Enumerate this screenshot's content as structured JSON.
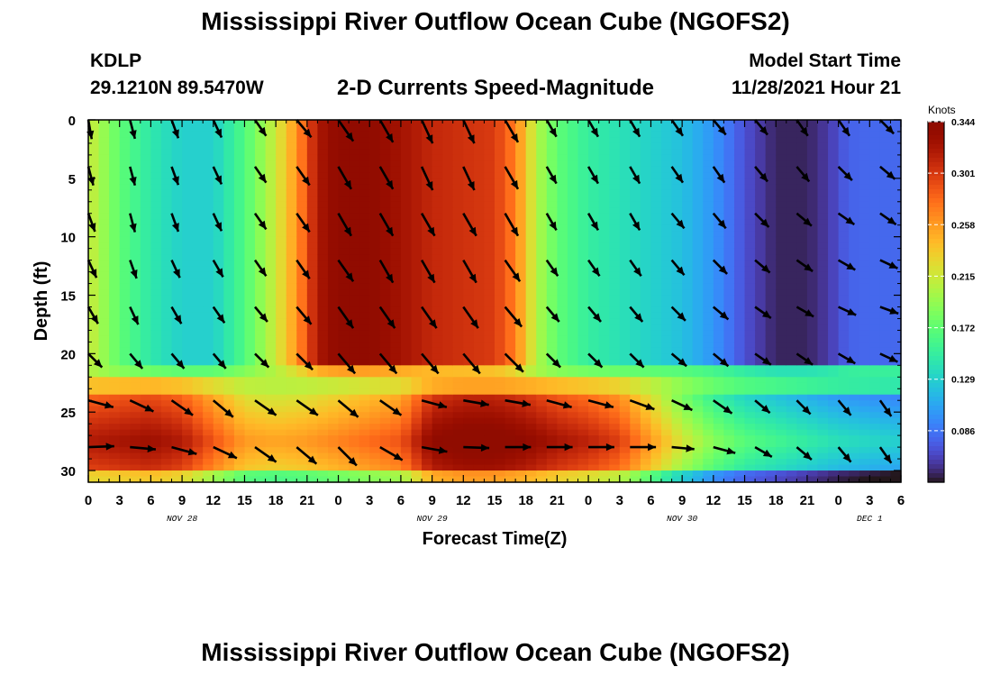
{
  "page": {
    "title_top": "Mississippi River Outflow Ocean Cube (NGOFS2)",
    "title_bottom": "Mississippi River Outflow Ocean Cube (NGOFS2)",
    "station_id": "KDLP",
    "station_coords": "29.1210N  89.5470W",
    "subtitle": "2-D Currents Speed-Magnitude",
    "model_start_label": "Model Start Time",
    "model_start_time": "11/28/2021 Hour 21"
  },
  "chart_data": {
    "type": "heatmap",
    "title": "2-D Currents Speed-Magnitude",
    "xlabel": "Forecast Time(Z)",
    "ylabel": "Depth (ft)",
    "x_tick_labels": [
      "0",
      "3",
      "6",
      "9",
      "12",
      "15",
      "18",
      "21",
      "0",
      "3",
      "6",
      "9",
      "12",
      "15",
      "18",
      "21",
      "0",
      "3",
      "6",
      "9",
      "12",
      "15",
      "18",
      "21",
      "0",
      "3",
      "6"
    ],
    "x_range_hours": [
      0,
      78
    ],
    "date_labels": [
      {
        "label": "NOV 28",
        "hour": 9
      },
      {
        "label": "NOV 29",
        "hour": 33
      },
      {
        "label": "NOV 30",
        "hour": 57
      },
      {
        "label": "DEC 1",
        "hour": 75
      }
    ],
    "y_tick_labels": [
      "0",
      "5",
      "10",
      "15",
      "20",
      "25",
      "30"
    ],
    "y_range": [
      0,
      31
    ],
    "y_inverted": true,
    "colorbar": {
      "unit_label": "Knots",
      "tick_labels": [
        "0.344",
        "0.301",
        "0.258",
        "0.215",
        "0.172",
        "0.129",
        "0.086"
      ],
      "min": 0.043,
      "max": 0.344,
      "colormap": "turbo"
    },
    "surface_layer_speed_by_hour": [
      {
        "hour": 0,
        "speed": 0.215
      },
      {
        "hour": 3,
        "speed": 0.172
      },
      {
        "hour": 6,
        "speed": 0.145
      },
      {
        "hour": 9,
        "speed": 0.129
      },
      {
        "hour": 12,
        "speed": 0.129
      },
      {
        "hour": 15,
        "speed": 0.165
      },
      {
        "hour": 18,
        "speed": 0.215
      },
      {
        "hour": 20,
        "speed": 0.26
      },
      {
        "hour": 22,
        "speed": 0.32
      },
      {
        "hour": 24,
        "speed": 0.34
      },
      {
        "hour": 27,
        "speed": 0.34
      },
      {
        "hour": 30,
        "speed": 0.325
      },
      {
        "hour": 33,
        "speed": 0.31
      },
      {
        "hour": 36,
        "speed": 0.305
      },
      {
        "hour": 39,
        "speed": 0.3
      },
      {
        "hour": 41,
        "speed": 0.27
      },
      {
        "hour": 43,
        "speed": 0.205
      },
      {
        "hour": 45,
        "speed": 0.172
      },
      {
        "hour": 48,
        "speed": 0.15
      },
      {
        "hour": 51,
        "speed": 0.14
      },
      {
        "hour": 54,
        "speed": 0.13
      },
      {
        "hour": 57,
        "speed": 0.12
      },
      {
        "hour": 60,
        "speed": 0.1
      },
      {
        "hour": 63,
        "speed": 0.07
      },
      {
        "hour": 66,
        "speed": 0.05
      },
      {
        "hour": 69,
        "speed": 0.05
      },
      {
        "hour": 71,
        "speed": 0.06
      },
      {
        "hour": 73,
        "speed": 0.078
      },
      {
        "hour": 75,
        "speed": 0.08
      },
      {
        "hour": 78,
        "speed": 0.08
      }
    ],
    "mixed_band": {
      "depth_from": 21.5,
      "depth_to": 23.5,
      "speed": 0.2
    },
    "lower_layer_speed_by_hour": [
      {
        "hour": 0,
        "speed": 0.28
      },
      {
        "hour": 6,
        "speed": 0.29
      },
      {
        "hour": 9,
        "speed": 0.28
      },
      {
        "hour": 12,
        "speed": 0.25
      },
      {
        "hour": 15,
        "speed": 0.22
      },
      {
        "hour": 18,
        "speed": 0.215
      },
      {
        "hour": 21,
        "speed": 0.22
      },
      {
        "hour": 24,
        "speed": 0.23
      },
      {
        "hour": 27,
        "speed": 0.24
      },
      {
        "hour": 30,
        "speed": 0.25
      },
      {
        "hour": 33,
        "speed": 0.3
      },
      {
        "hour": 36,
        "speed": 0.31
      },
      {
        "hour": 39,
        "speed": 0.31
      },
      {
        "hour": 42,
        "speed": 0.3
      },
      {
        "hour": 45,
        "speed": 0.285
      },
      {
        "hour": 48,
        "speed": 0.275
      },
      {
        "hour": 51,
        "speed": 0.26
      },
      {
        "hour": 54,
        "speed": 0.22
      },
      {
        "hour": 57,
        "speed": 0.18
      },
      {
        "hour": 60,
        "speed": 0.15
      },
      {
        "hour": 63,
        "speed": 0.13
      },
      {
        "hour": 66,
        "speed": 0.12
      },
      {
        "hour": 69,
        "speed": 0.11
      },
      {
        "hour": 72,
        "speed": 0.1
      },
      {
        "hour": 75,
        "speed": 0.095
      },
      {
        "hour": 78,
        "speed": 0.09
      }
    ],
    "vector_hours": [
      0,
      4,
      8,
      12,
      16,
      20,
      24,
      28,
      32,
      36,
      40,
      44,
      48,
      52,
      56,
      60,
      64,
      68,
      72,
      76
    ],
    "vector_depths_ft": [
      0,
      4,
      8,
      12,
      16,
      20,
      24,
      28
    ],
    "vector_direction_deg": [
      [
        170,
        165,
        160,
        155,
        145,
        140,
        145,
        150,
        155,
        155,
        150,
        150,
        150,
        150,
        145,
        140,
        140,
        145,
        145,
        135
      ],
      [
        165,
        165,
        160,
        155,
        145,
        145,
        150,
        150,
        155,
        155,
        150,
        150,
        150,
        150,
        145,
        145,
        140,
        140,
        135,
        130
      ],
      [
        160,
        165,
        160,
        155,
        145,
        145,
        150,
        150,
        150,
        150,
        150,
        150,
        150,
        150,
        140,
        140,
        135,
        130,
        125,
        125
      ],
      [
        155,
        160,
        155,
        150,
        145,
        145,
        145,
        150,
        150,
        150,
        145,
        145,
        145,
        145,
        140,
        135,
        130,
        125,
        120,
        115
      ],
      [
        150,
        155,
        150,
        145,
        140,
        140,
        145,
        145,
        145,
        145,
        140,
        140,
        140,
        140,
        135,
        130,
        125,
        120,
        115,
        110
      ],
      [
        135,
        140,
        140,
        140,
        135,
        135,
        140,
        140,
        140,
        140,
        135,
        135,
        135,
        135,
        130,
        130,
        125,
        125,
        120,
        115
      ],
      [
        105,
        115,
        125,
        130,
        125,
        125,
        130,
        125,
        105,
        100,
        100,
        105,
        105,
        110,
        115,
        125,
        130,
        135,
        140,
        145
      ],
      [
        88,
        95,
        105,
        115,
        125,
        130,
        135,
        120,
        100,
        92,
        90,
        90,
        90,
        90,
        95,
        105,
        120,
        130,
        140,
        145
      ]
    ],
    "vector_length": [
      [
        0.6,
        0.6,
        0.6,
        0.6,
        0.6,
        0.7,
        0.8,
        0.8,
        0.8,
        0.8,
        0.8,
        0.6,
        0.6,
        0.6,
        0.6,
        0.6,
        0.6,
        0.6,
        0.6,
        0.6
      ],
      [
        0.6,
        0.6,
        0.6,
        0.6,
        0.6,
        0.7,
        0.8,
        0.8,
        0.8,
        0.8,
        0.8,
        0.6,
        0.6,
        0.6,
        0.6,
        0.6,
        0.6,
        0.6,
        0.6,
        0.6
      ],
      [
        0.6,
        0.6,
        0.6,
        0.6,
        0.6,
        0.7,
        0.8,
        0.8,
        0.8,
        0.8,
        0.8,
        0.6,
        0.6,
        0.6,
        0.6,
        0.6,
        0.6,
        0.6,
        0.6,
        0.6
      ],
      [
        0.6,
        0.6,
        0.6,
        0.6,
        0.6,
        0.7,
        0.8,
        0.8,
        0.8,
        0.8,
        0.8,
        0.6,
        0.6,
        0.6,
        0.6,
        0.6,
        0.6,
        0.6,
        0.6,
        0.6
      ],
      [
        0.6,
        0.6,
        0.6,
        0.6,
        0.6,
        0.7,
        0.8,
        0.8,
        0.8,
        0.8,
        0.8,
        0.6,
        0.6,
        0.6,
        0.6,
        0.6,
        0.6,
        0.6,
        0.6,
        0.6
      ],
      [
        0.6,
        0.6,
        0.6,
        0.6,
        0.6,
        0.7,
        0.8,
        0.8,
        0.8,
        0.8,
        0.8,
        0.6,
        0.6,
        0.6,
        0.6,
        0.6,
        0.6,
        0.6,
        0.6,
        0.6
      ],
      [
        0.8,
        0.8,
        0.8,
        0.8,
        0.8,
        0.8,
        0.8,
        0.8,
        0.8,
        0.8,
        0.8,
        0.8,
        0.8,
        0.8,
        0.7,
        0.7,
        0.6,
        0.6,
        0.6,
        0.6
      ],
      [
        0.8,
        0.8,
        0.8,
        0.8,
        0.8,
        0.8,
        0.8,
        0.8,
        0.8,
        0.8,
        0.8,
        0.8,
        0.8,
        0.8,
        0.7,
        0.7,
        0.6,
        0.6,
        0.6,
        0.6
      ]
    ]
  }
}
